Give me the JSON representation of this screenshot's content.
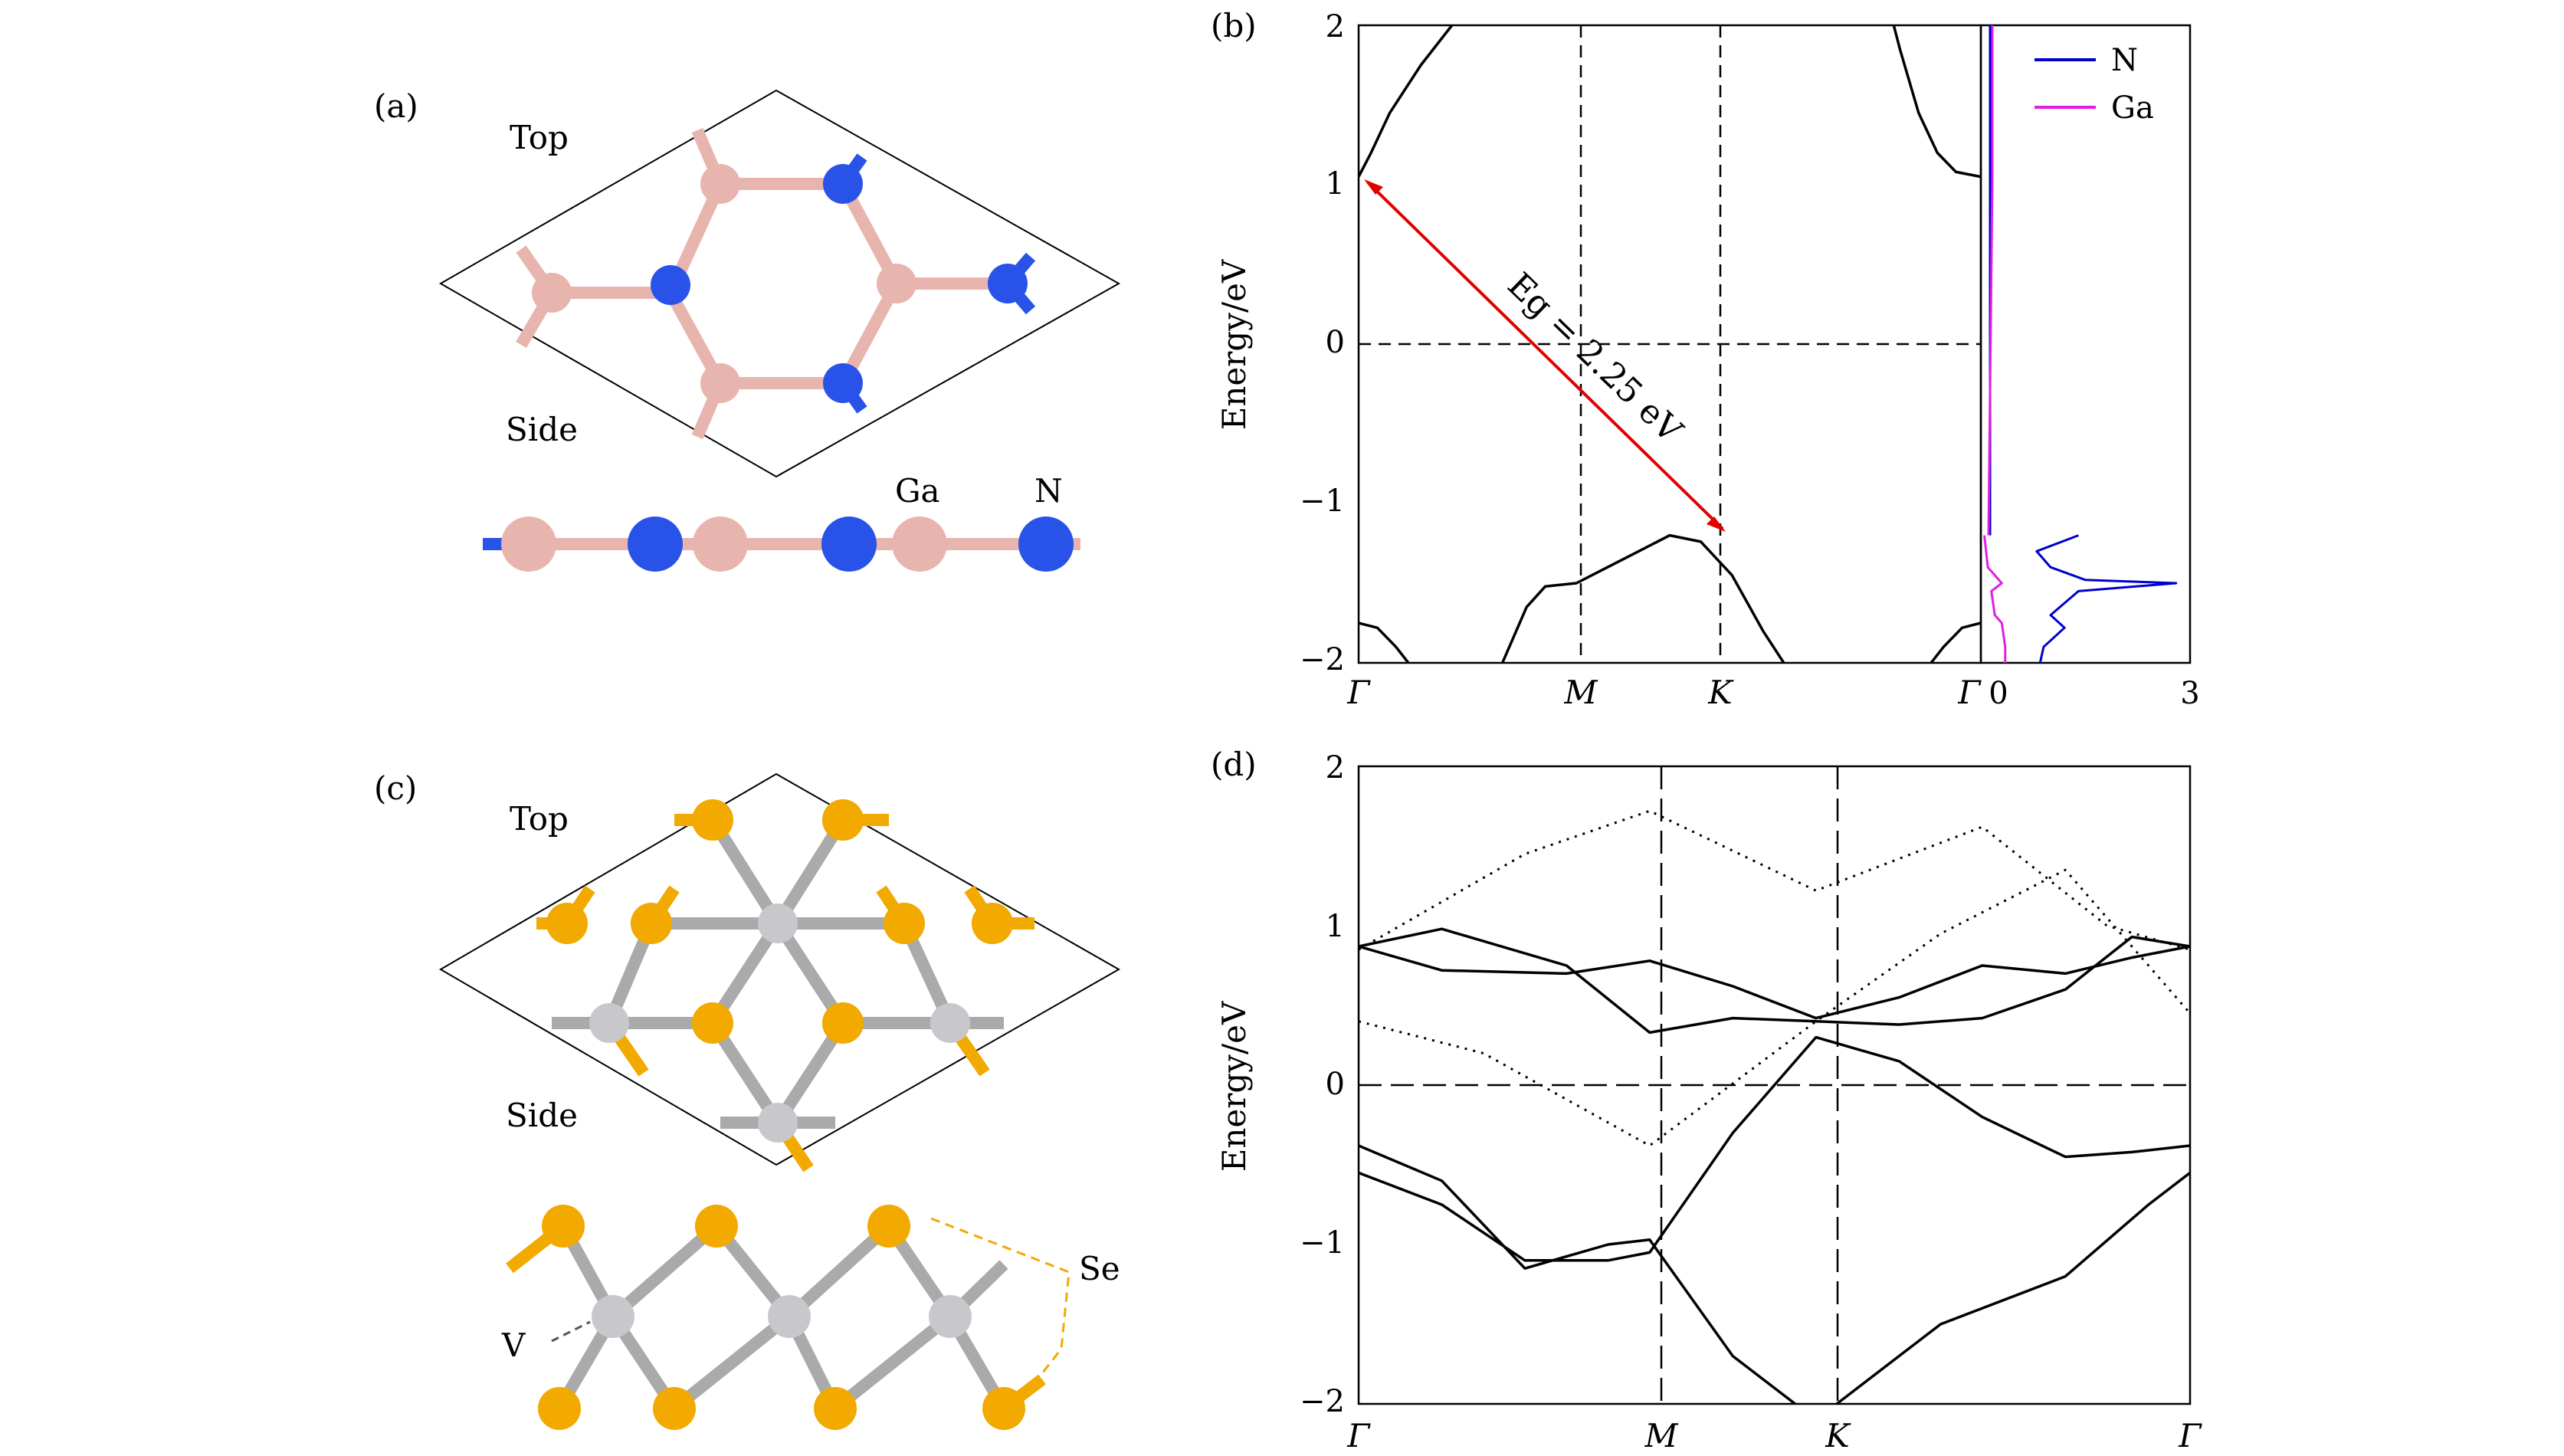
{
  "panels": {
    "a": {
      "label": "(a)",
      "top_label": "Top",
      "side_label": "Side",
      "atom_labels": [
        "Ga",
        "N"
      ]
    },
    "b": {
      "label": "(b)",
      "ylabel": "Energy/eV",
      "gap_annotation": "Eg = 2.25 eV",
      "legend": [
        "N",
        "Ga"
      ],
      "kpoints": [
        "Γ",
        "M",
        "K",
        "Γ"
      ],
      "dos_xticks": [
        "0",
        "3"
      ],
      "yticks": [
        "2",
        "1",
        "0",
        "−1",
        "−2"
      ]
    },
    "c": {
      "label": "(c)",
      "top_label": "Top",
      "side_label": "Side",
      "atom_labels": [
        "Se",
        "V"
      ]
    },
    "d": {
      "label": "(d)",
      "ylabel": "Energy/eV",
      "kpoints": [
        "Γ",
        "M",
        "K",
        "Γ"
      ],
      "yticks": [
        "2",
        "1",
        "0",
        "−1",
        "−2"
      ]
    }
  },
  "colors": {
    "ga": "#e8b4ae",
    "n": "#2952e8",
    "se": "#f2a900",
    "v": "#c8c8cc",
    "gap_arrow": "#e00000",
    "dos_n": "#0000cc",
    "dos_ga": "#e020e0"
  },
  "chart_data": [
    {
      "type": "line",
      "panel": "b",
      "ylabel": "Energy/eV",
      "ylim": [
        -2,
        2
      ],
      "xticks": [
        "Γ",
        "M",
        "K",
        "Γ"
      ],
      "fermi_level": 0,
      "series": [
        {
          "x": [
            0,
            0.02,
            0.05,
            0.1,
            0.15,
            0.2
          ],
          "y": [
            1.05,
            1.2,
            1.45,
            1.75,
            2.0,
            2.3
          ]
        },
        {
          "x": [
            0.84,
            0.87,
            0.9,
            0.93,
            0.96,
            1.0
          ],
          "y": [
            2.3,
            1.85,
            1.45,
            1.2,
            1.08,
            1.05
          ]
        },
        {
          "x": [
            0.22,
            0.27,
            0.3,
            0.35,
            0.4,
            0.45,
            0.5,
            0.55,
            0.6,
            0.65,
            0.7
          ],
          "y": [
            -2.1,
            -1.65,
            -1.52,
            -1.5,
            -1.4,
            -1.3,
            -1.2,
            -1.24,
            -1.45,
            -1.8,
            -2.1
          ]
        },
        {
          "x": [
            0,
            0.03,
            0.06,
            0.09
          ],
          "y": [
            -1.75,
            -1.78,
            -1.9,
            -2.05
          ]
        },
        {
          "x": [
            0.91,
            0.94,
            0.97,
            1.0
          ],
          "y": [
            -2.05,
            -1.9,
            -1.78,
            -1.75
          ]
        }
      ],
      "gap": {
        "value": 2.25,
        "unit": "eV",
        "vbm": {
          "k": "K",
          "E": -1.2
        },
        "cbm": {
          "k": "Γ",
          "E": 1.05
        }
      },
      "dos": {
        "xlim": [
          0,
          3
        ],
        "series": [
          {
            "name": "N",
            "E": [
              -1.2,
              -1.3,
              -1.4,
              -1.48,
              -1.5,
              -1.55,
              -1.7,
              -1.78,
              -1.9,
              -2.0
            ],
            "dos": [
              1.4,
              0.8,
              1.0,
              1.5,
              2.8,
              1.4,
              1.0,
              1.2,
              0.9,
              0.85
            ]
          },
          {
            "name": "Ga",
            "E": [
              -1.2,
              -1.4,
              -1.5,
              -1.55,
              -1.7,
              -1.75,
              -1.9,
              -2.0
            ],
            "dos": [
              0.05,
              0.1,
              0.3,
              0.15,
              0.2,
              0.3,
              0.35,
              0.35
            ]
          }
        ]
      }
    },
    {
      "type": "line",
      "panel": "d",
      "ylabel": "Energy/eV",
      "ylim": [
        -2,
        2
      ],
      "xticks": [
        "Γ",
        "M",
        "K",
        "Γ"
      ],
      "fermi_level": 0,
      "series": [
        {
          "style": "solid",
          "x": [
            0,
            0.1,
            0.25,
            0.35,
            0.45,
            0.55,
            0.65,
            0.75,
            0.85,
            0.93,
            1.0
          ],
          "y": [
            0.87,
            0.98,
            0.75,
            0.33,
            0.42,
            0.4,
            0.38,
            0.42,
            0.6,
            0.93,
            0.87
          ]
        },
        {
          "style": "solid",
          "x": [
            0,
            0.1,
            0.25,
            0.35,
            0.45,
            0.55,
            0.65,
            0.75,
            0.85,
            0.93,
            1.0
          ],
          "y": [
            0.87,
            0.72,
            0.7,
            0.78,
            0.62,
            0.42,
            0.55,
            0.75,
            0.7,
            0.8,
            0.87
          ]
        },
        {
          "style": "solid",
          "x": [
            0,
            0.1,
            0.2,
            0.3,
            0.35,
            0.45,
            0.55,
            0.65,
            0.75,
            0.85,
            0.93,
            1.0
          ],
          "y": [
            -0.55,
            -0.75,
            -1.1,
            -1.1,
            -1.05,
            -0.3,
            0.3,
            0.15,
            -0.2,
            -0.45,
            -0.42,
            -0.38
          ]
        },
        {
          "style": "solid",
          "x": [
            0,
            0.1,
            0.2,
            0.3,
            0.35,
            0.45,
            0.55,
            0.7,
            0.85,
            0.95,
            1.0
          ],
          "y": [
            -0.38,
            -0.6,
            -1.15,
            -1.0,
            -0.97,
            -1.7,
            -2.1,
            -1.5,
            -1.2,
            -0.75,
            -0.55
          ]
        },
        {
          "style": "dotted",
          "x": [
            0,
            0.2,
            0.35,
            0.55,
            0.75,
            0.9,
            1.0
          ],
          "y": [
            0.85,
            1.45,
            1.72,
            1.22,
            1.62,
            1.0,
            0.85
          ]
        },
        {
          "style": "dotted",
          "x": [
            0,
            0.15,
            0.35,
            0.55,
            0.7,
            0.85,
            1.0
          ],
          "y": [
            0.4,
            0.2,
            -0.38,
            0.4,
            0.95,
            1.35,
            0.45
          ]
        }
      ]
    }
  ]
}
